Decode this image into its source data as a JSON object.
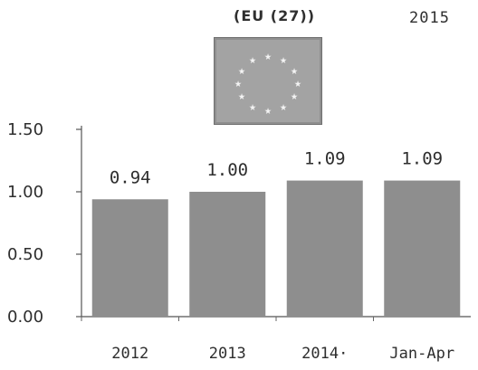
{
  "header": {
    "region": "(EU (27))",
    "year": "2015"
  },
  "flag_icon": "eu-flag-icon",
  "chart_data": {
    "type": "bar",
    "categories": [
      "2012",
      "2013",
      "2014·",
      "Jan-Apr"
    ],
    "values": [
      0.94,
      1.0,
      1.09,
      1.09
    ],
    "value_labels": [
      "0.94",
      "1.00",
      "1.09",
      "1.09"
    ],
    "yticks": [
      "0.00",
      "0.50",
      "1.00",
      "1.50"
    ],
    "ylim": [
      0,
      1.5
    ],
    "grid": false,
    "bar_color": "#8e8e8e"
  }
}
